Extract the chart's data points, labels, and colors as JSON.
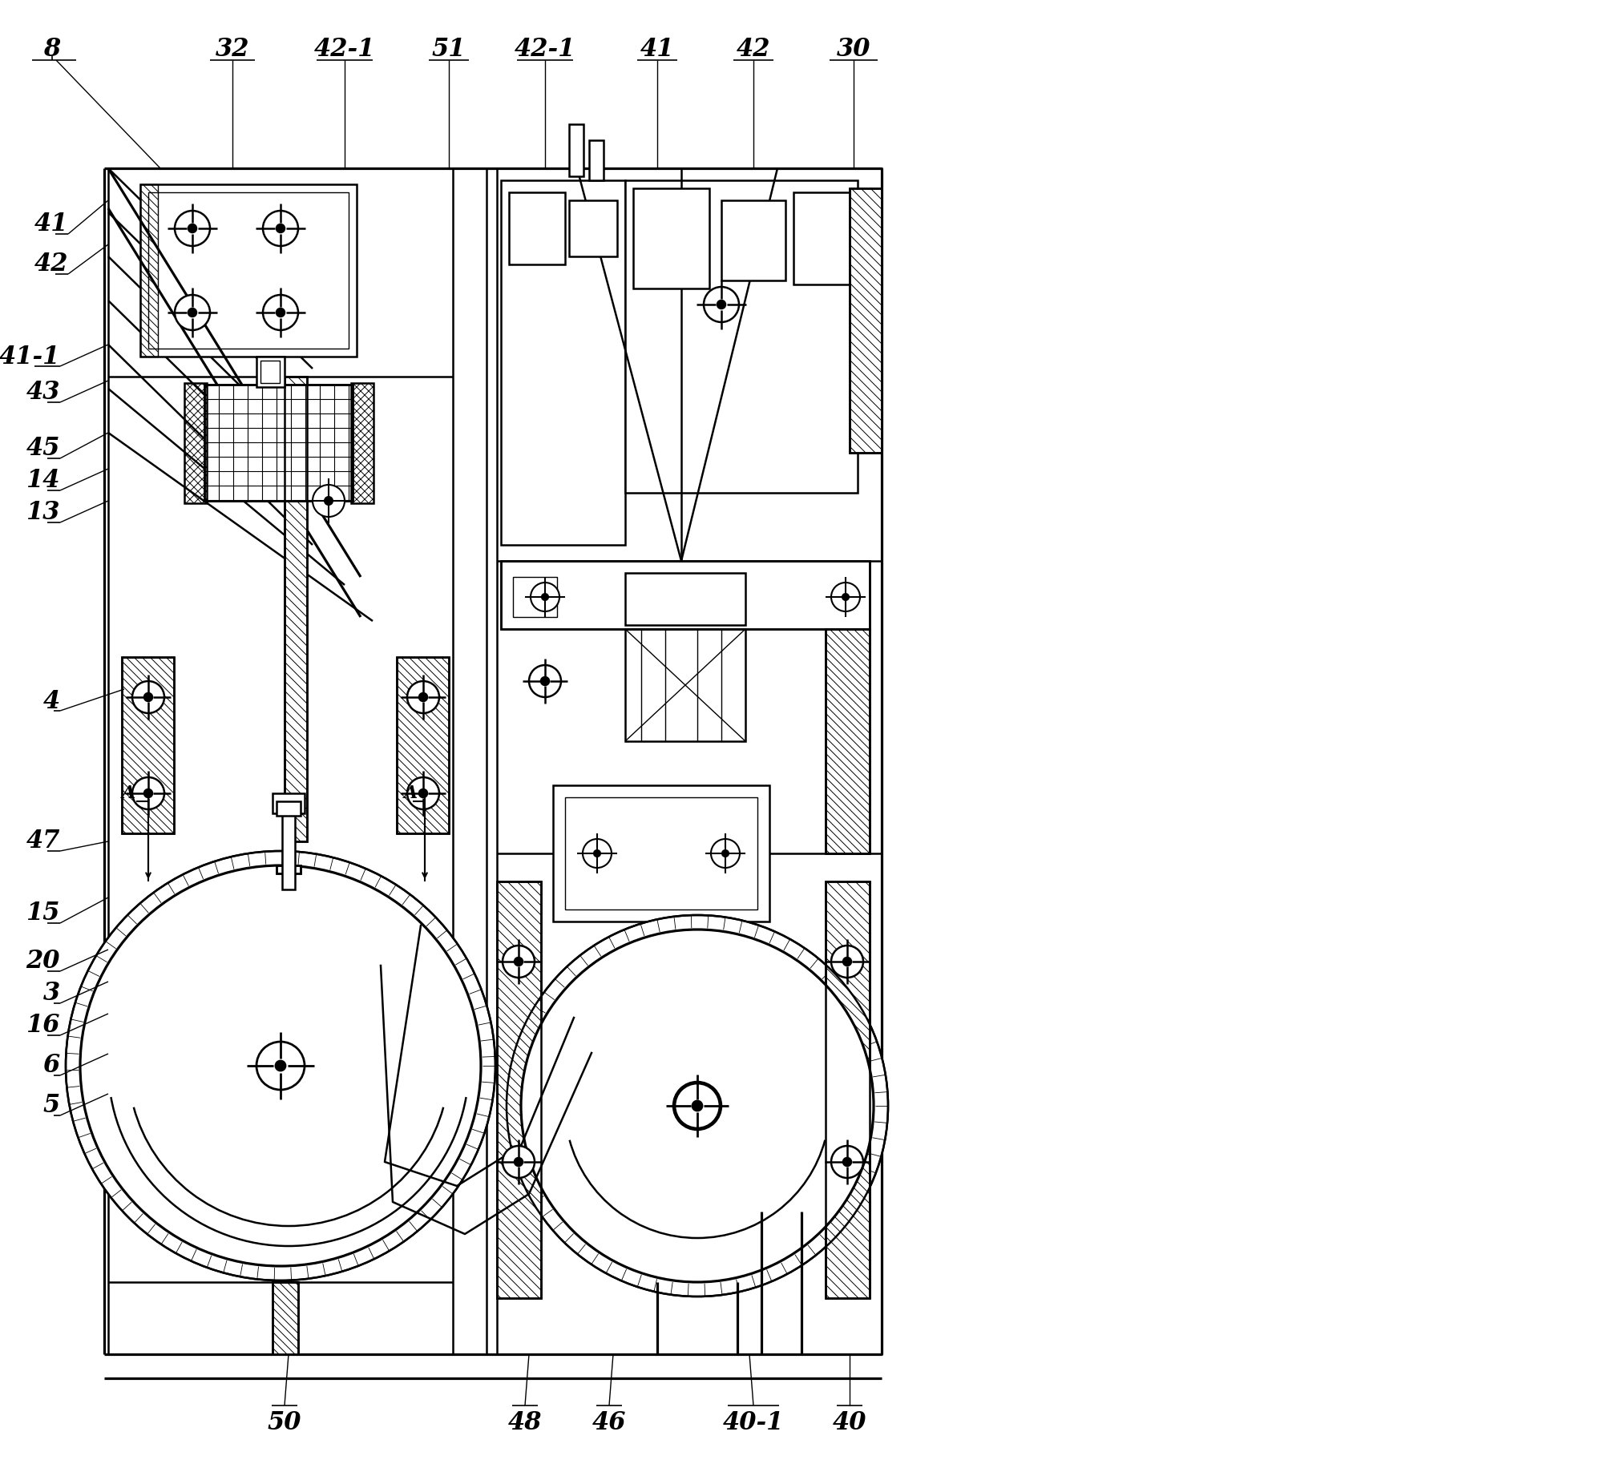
{
  "bg_color": "#ffffff",
  "line_color": "#000000",
  "fig_width": 19.95,
  "fig_height": 18.32,
  "lw_main": 1.8,
  "lw_thin": 1.0,
  "lw_hatch": 0.7
}
